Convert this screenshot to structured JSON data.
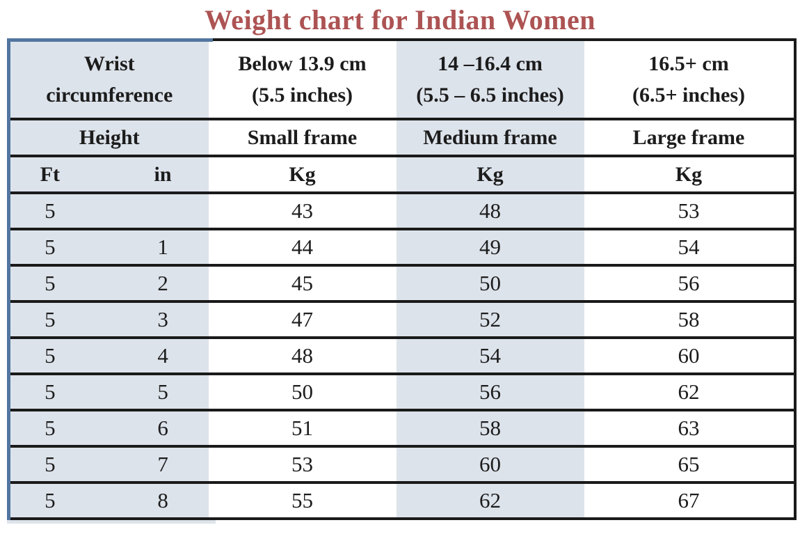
{
  "colors": {
    "title": "#ad5353",
    "column_tint": "#dde3eb",
    "border": "#1a1a1a",
    "left_border": "#52769f",
    "text": "#1c1c1c",
    "background": "#ffffff"
  },
  "chart_data": {
    "type": "table",
    "title": "Weight chart for Indian Women",
    "header": {
      "wrist_line1": "Wrist",
      "wrist_line2": "circumference",
      "small_range_line1": "Below 13.9 cm",
      "small_range_line2": "(5.5 inches)",
      "medium_range_line1": "14 –16.4 cm",
      "medium_range_line2": "(5.5 – 6.5 inches)",
      "large_range_line1": "16.5+ cm",
      "large_range_line2": "(6.5+ inches)",
      "height_label": "Height",
      "small_frame_label": "Small frame",
      "medium_frame_label": "Medium frame",
      "large_frame_label": "Large frame",
      "ft_label": "Ft",
      "in_label": "in",
      "kg_label": "Kg"
    },
    "rows": [
      {
        "ft": "5",
        "in": "",
        "small_kg": "43",
        "medium_kg": "48",
        "large_kg": "53"
      },
      {
        "ft": "5",
        "in": "1",
        "small_kg": "44",
        "medium_kg": "49",
        "large_kg": "54"
      },
      {
        "ft": "5",
        "in": "2",
        "small_kg": "45",
        "medium_kg": "50",
        "large_kg": "56"
      },
      {
        "ft": "5",
        "in": "3",
        "small_kg": "47",
        "medium_kg": "52",
        "large_kg": "58"
      },
      {
        "ft": "5",
        "in": "4",
        "small_kg": "48",
        "medium_kg": "54",
        "large_kg": "60"
      },
      {
        "ft": "5",
        "in": "5",
        "small_kg": "50",
        "medium_kg": "56",
        "large_kg": "62"
      },
      {
        "ft": "5",
        "in": "6",
        "small_kg": "51",
        "medium_kg": "58",
        "large_kg": "63"
      },
      {
        "ft": "5",
        "in": "7",
        "small_kg": "53",
        "medium_kg": "60",
        "large_kg": "65"
      },
      {
        "ft": "5",
        "in": "8",
        "small_kg": "55",
        "medium_kg": "62",
        "large_kg": "67"
      }
    ]
  }
}
